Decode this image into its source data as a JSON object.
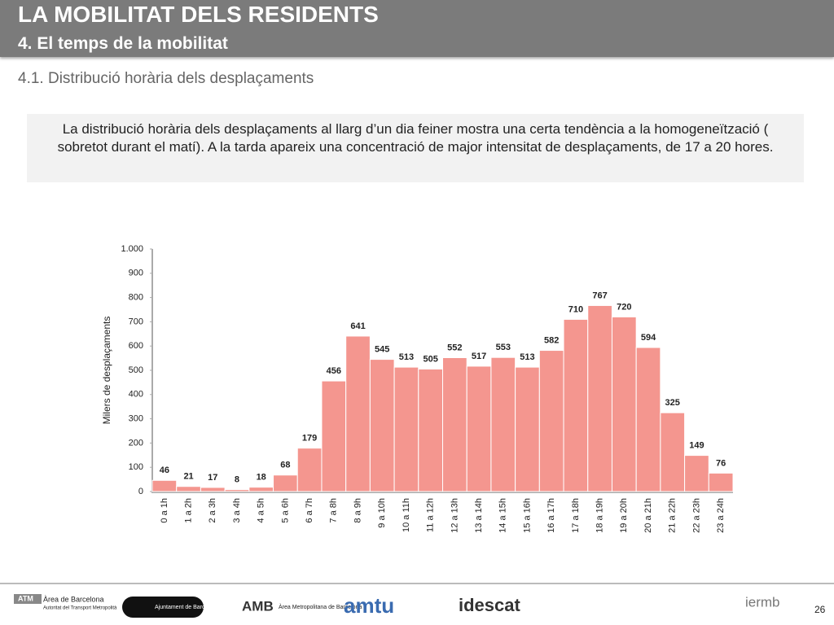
{
  "header": {
    "title": "LA MOBILITAT DELS RESIDENTS",
    "subtitle": "4. El temps de la mobilitat"
  },
  "section": "4.1. Distribució horària dels desplaçaments",
  "summary": "La distribució horària dels desplaçaments al llarg d’un dia feiner mostra una certa tendència a la homogeneïtzació ( sobretot durant el matí). A la tarda apareix una concentració de major intensitat de desplaçaments, de 17 a 20 hores.",
  "chart_data": {
    "type": "bar",
    "ylabel": "Milers de desplaçaments",
    "categories": [
      "0 a 1h",
      "1 a 2h",
      "2 a 3h",
      "3 a 4h",
      "4 a 5h",
      "5 a 6h",
      "6 a 7h",
      "7 a 8h",
      "8 a 9h",
      "9 a 10h",
      "10 a 11h",
      "11 a 12h",
      "12 a 13h",
      "13 a 14h",
      "14 a 15h",
      "15 a 16h",
      "16 a 17h",
      "17 a 18h",
      "18 a 19h",
      "19 a 20h",
      "20 a 21h",
      "21 a 22h",
      "22 a 23h",
      "23 a 24h"
    ],
    "values": [
      46,
      21,
      17,
      8,
      18,
      68,
      179,
      456,
      641,
      545,
      513,
      505,
      552,
      517,
      553,
      513,
      582,
      710,
      767,
      720,
      594,
      325,
      149,
      76
    ],
    "color": "#f4968f",
    "ylim": [
      0,
      1000
    ],
    "yticks": [
      0,
      100,
      200,
      300,
      400,
      500,
      600,
      700,
      800,
      900,
      {
        "value": 1000,
        "label": "1.000"
      }
    ],
    "grid": false
  },
  "footer": {
    "logos": [
      "ATM",
      "Àrea de Barcelona",
      "Autoritat del Transport Metropolità",
      "Ajuntament de Barcelona",
      "AMB",
      "Àrea Metropolitana de Barcelona",
      "amtu",
      "idescat",
      "iermb"
    ],
    "page": "26"
  }
}
